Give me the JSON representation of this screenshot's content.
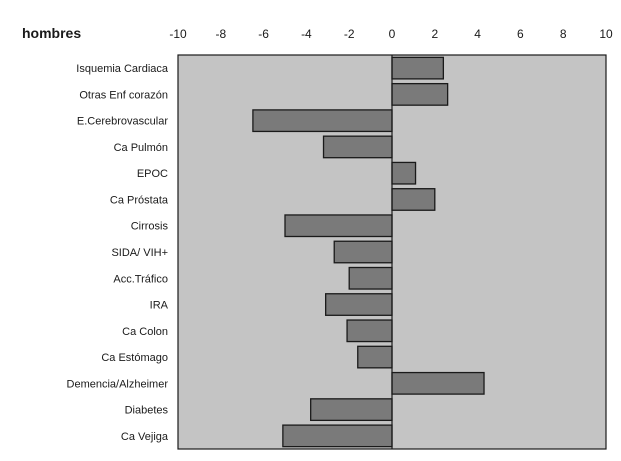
{
  "chart_data": {
    "type": "bar",
    "orientation": "horizontal",
    "title": "hombres",
    "categories": [
      "Isquemia Cardiaca",
      "Otras Enf corazón",
      "E.Cerebrovascular",
      "Ca Pulmón",
      "EPOC",
      "Ca Próstata",
      "Cirrosis",
      "SIDA/ VIH+",
      "Acc.Tráfico",
      "IRA",
      "Ca Colon",
      "Ca Estómago",
      "Demencia/Alzheimer",
      "Diabetes",
      "Ca Vejiga"
    ],
    "values": [
      2.4,
      2.6,
      -6.5,
      -3.2,
      1.1,
      2.0,
      -5.0,
      -2.7,
      -2.0,
      -3.1,
      -2.1,
      -1.6,
      4.3,
      -3.8,
      -5.1
    ],
    "xlim": [
      -10,
      10
    ],
    "xticks": [
      -10,
      -8,
      -6,
      -4,
      -2,
      0,
      2,
      4,
      6,
      8,
      10
    ],
    "grid": false,
    "legend": "none",
    "colors": {
      "plot_background": "#c4c4c4",
      "bar_fill": "#7a7a7a",
      "bar_stroke": "#1a1a1a",
      "frame": "#1a1a1a",
      "text": "#1a1a1a"
    }
  }
}
